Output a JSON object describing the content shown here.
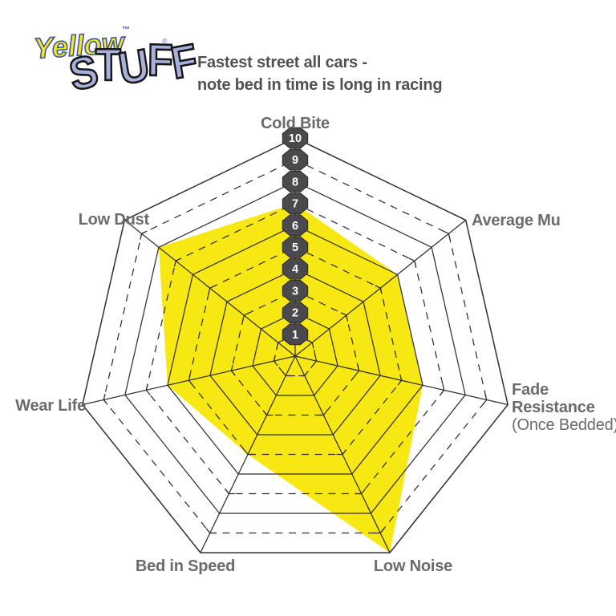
{
  "logo": {
    "word1": "Yellow",
    "trademark": "™",
    "word2": "STUFF",
    "registered": "®"
  },
  "header": {
    "title_line1": "Fastest street all cars -",
    "title_line2": "note bed in time is long in racing"
  },
  "chart_data": {
    "type": "radar",
    "title": "Fastest street all cars - note bed in time is long in racing",
    "scale_min": 0,
    "scale_max": 10,
    "scale_ticks": [
      1,
      2,
      3,
      4,
      5,
      6,
      7,
      8,
      9,
      10
    ],
    "grid": {
      "shape": "heptagon",
      "rings": 10,
      "even_rings": "solid",
      "odd_rings": "dashed",
      "spokes": "solid"
    },
    "axes": [
      {
        "label": "Cold Bite",
        "value": 7
      },
      {
        "label": "Average Mu",
        "value": 6
      },
      {
        "label": "Fade Resistance",
        "sublabel": "(Once Bedded)",
        "value": 6
      },
      {
        "label": "Low Noise",
        "value": 10
      },
      {
        "label": "Bed in Speed",
        "value": 5
      },
      {
        "label": "Wear Life",
        "value": 6
      },
      {
        "label": "Low Dust",
        "value": 8
      }
    ],
    "legend": "none"
  },
  "colors": {
    "background": "#ffffff",
    "series_fill": "#f7e813",
    "grid_line": "#2f2f31",
    "badge_fill": "#4a4a4c",
    "badge_stroke": "#2a2a2a",
    "badge_text": "#ffffff",
    "axis_label": "#6a6b6e",
    "title_text": "#505154",
    "logo_yellow": "#f8e813",
    "logo_yellow_outline": "#3d56a8",
    "logo_stuff_fill": "#a7b1dc"
  }
}
